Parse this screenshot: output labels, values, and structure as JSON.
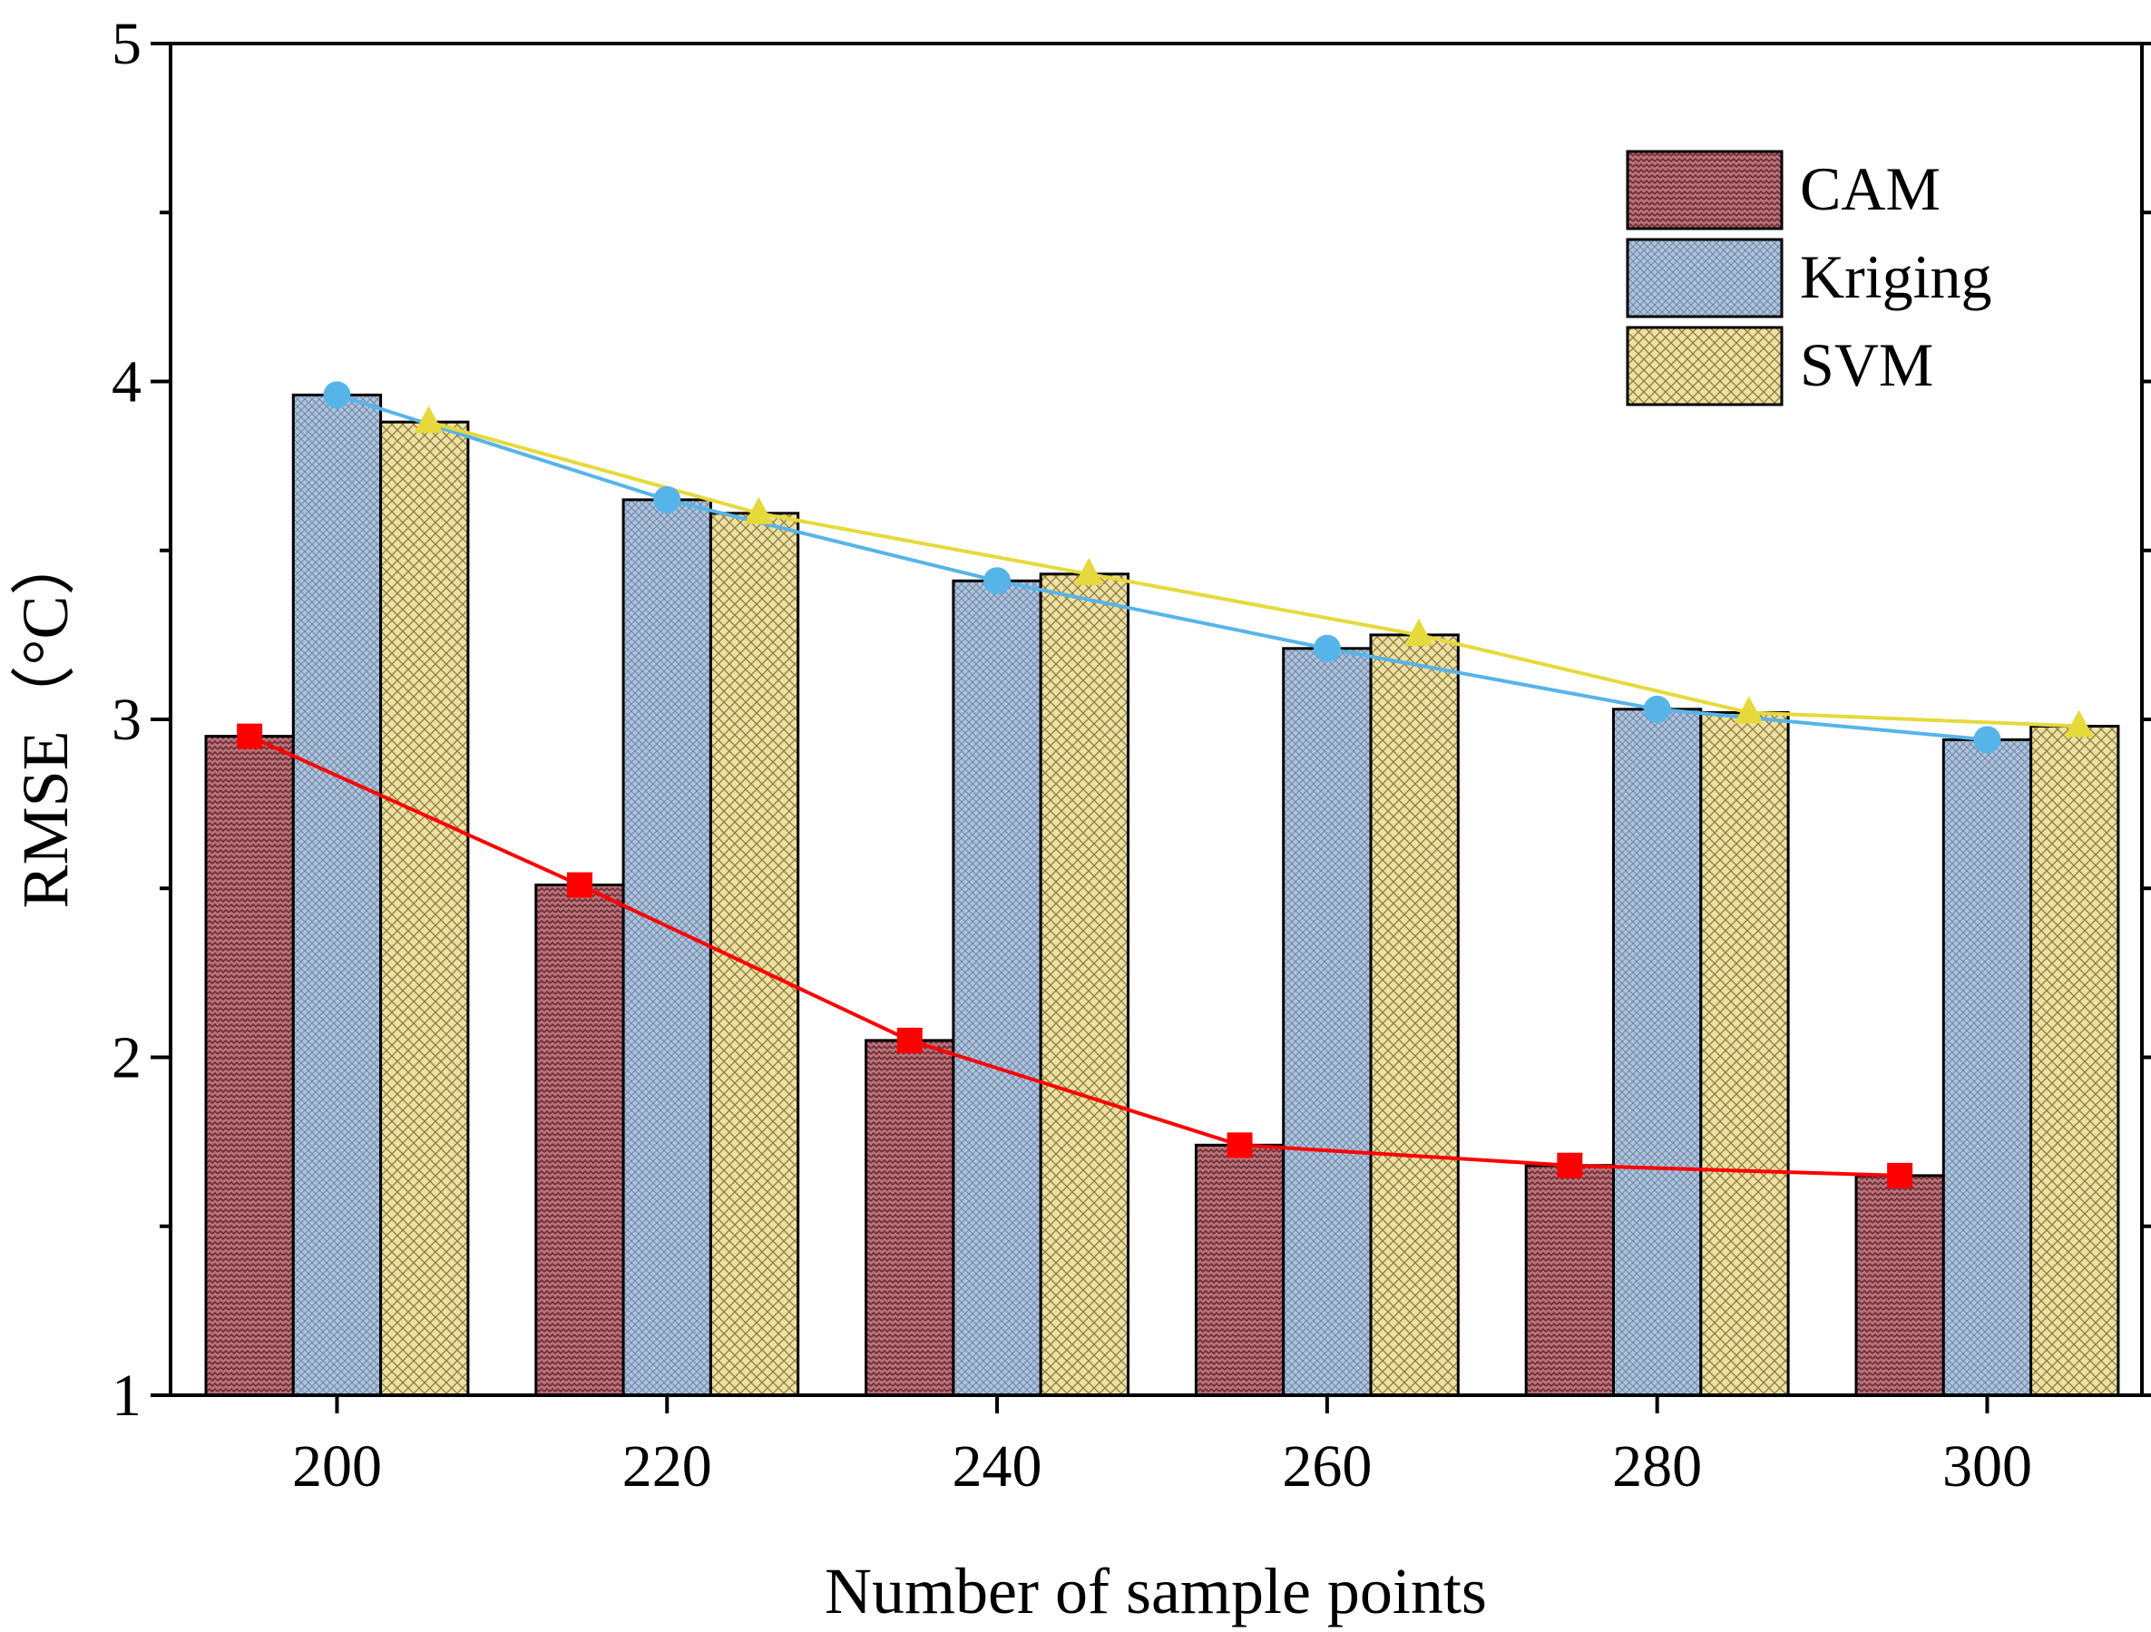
{
  "chart_data": {
    "type": "bar",
    "title": "",
    "xlabel": "Number of sample points",
    "ylabel": "RMSE（°C）",
    "categories": [
      "200",
      "220",
      "240",
      "260",
      "280",
      "300"
    ],
    "ylim": [
      1,
      5
    ],
    "y_ticks": [
      "1",
      "2",
      "3",
      "4",
      "5"
    ],
    "legend_position": "top-right",
    "series": [
      {
        "name": "CAM",
        "values": [
          2.95,
          2.51,
          2.05,
          1.74,
          1.68,
          1.65
        ],
        "color": "#B5676F",
        "line_color": "#FF0000",
        "marker": "square"
      },
      {
        "name": "Kriging",
        "values": [
          3.96,
          3.65,
          3.41,
          3.21,
          3.03,
          2.94
        ],
        "color": "#A9BFD8",
        "line_color": "#56B4E9",
        "marker": "circle"
      },
      {
        "name": "SVM",
        "values": [
          3.88,
          3.61,
          3.43,
          3.25,
          3.02,
          2.98
        ],
        "color": "#E8DB9A",
        "line_color": "#E6D93C",
        "marker": "triangle"
      }
    ]
  }
}
